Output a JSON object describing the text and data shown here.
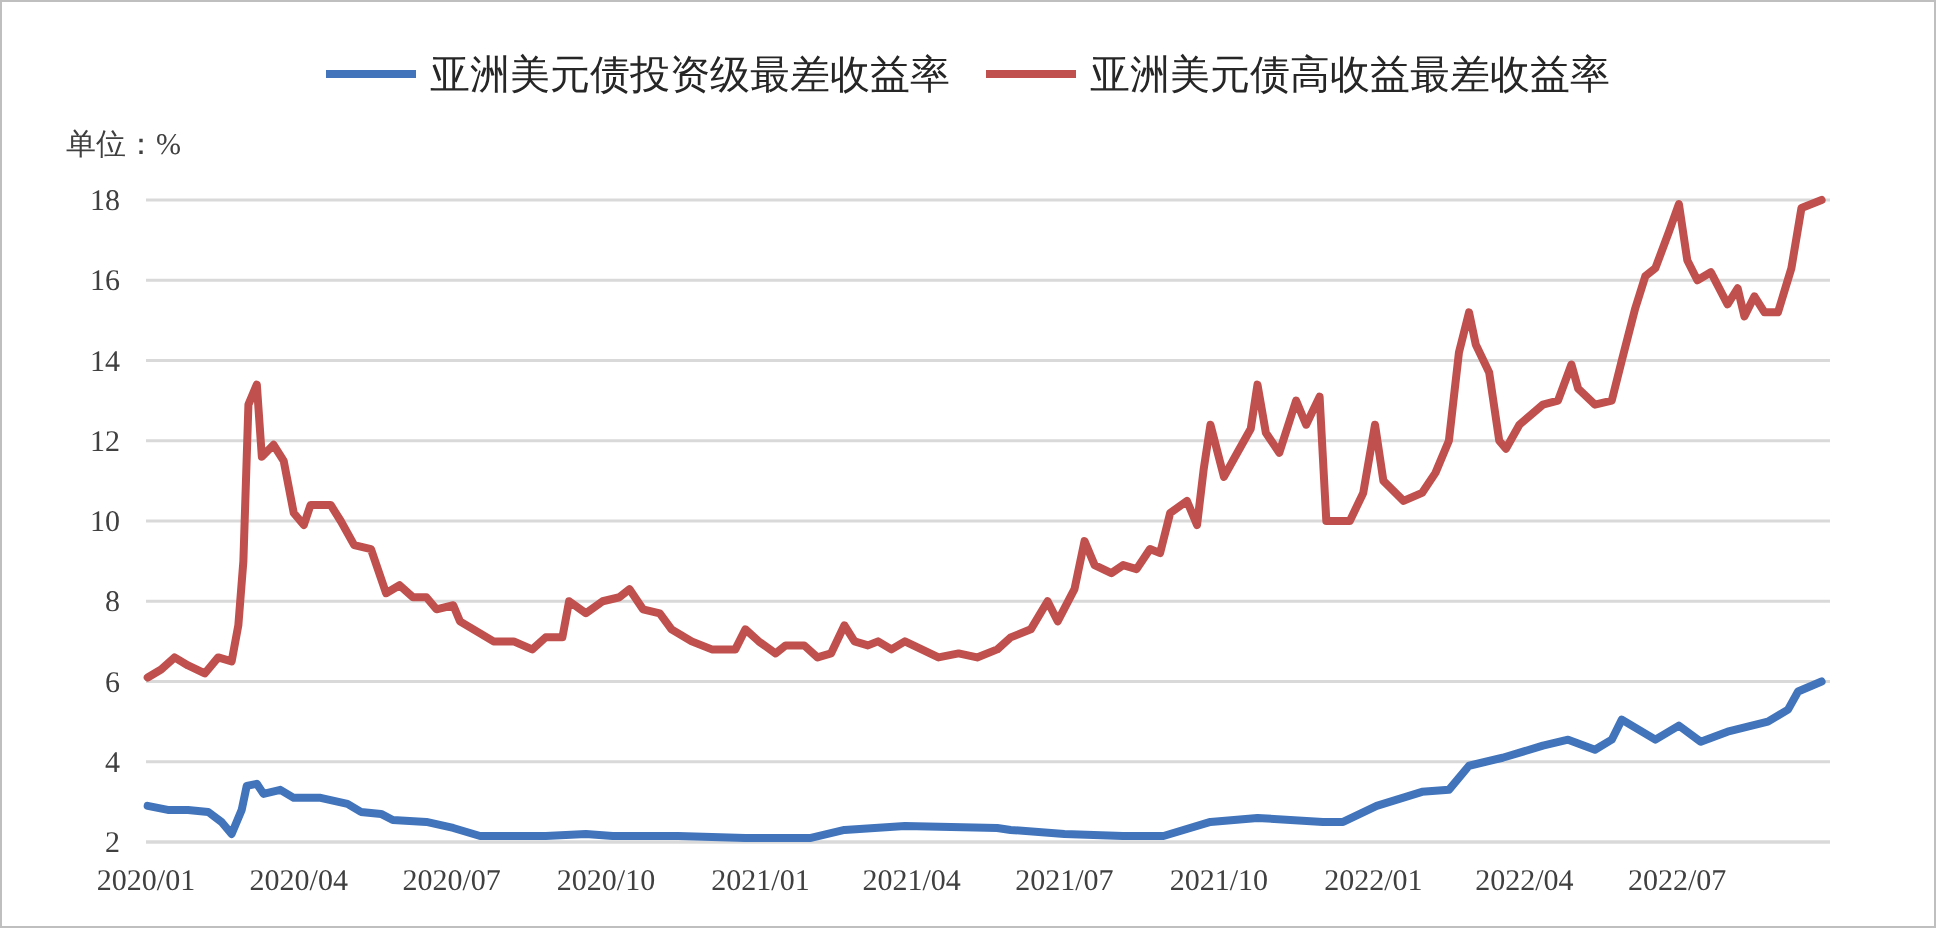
{
  "chart_data": {
    "type": "line",
    "annotations": [
      "单位：%"
    ],
    "xlim": [
      "2020-01-01",
      "2022-09-30"
    ],
    "xticks": [
      {
        "value": "2020-01-01",
        "label": "2020/01"
      },
      {
        "value": "2020-04-01",
        "label": "2020/04"
      },
      {
        "value": "2020-07-01",
        "label": "2020/07"
      },
      {
        "value": "2020-10-01",
        "label": "2020/10"
      },
      {
        "value": "2021-01-01",
        "label": "2021/01"
      },
      {
        "value": "2021-04-01",
        "label": "2021/04"
      },
      {
        "value": "2021-07-01",
        "label": "2021/07"
      },
      {
        "value": "2021-10-01",
        "label": "2021/10"
      },
      {
        "value": "2022-01-01",
        "label": "2022/01"
      },
      {
        "value": "2022-04-01",
        "label": "2022/04"
      },
      {
        "value": "2022-07-01",
        "label": "2022/07"
      }
    ],
    "ylim": [
      2,
      18
    ],
    "yticks": [
      2,
      4,
      6,
      8,
      10,
      12,
      14,
      16,
      18
    ],
    "grid": "y",
    "legend": "top",
    "series": [
      {
        "name": "亚洲美元债投资级最差收益率",
        "color": "#4174bb",
        "x": [
          "2020-01-02",
          "2020-01-14",
          "2020-01-26",
          "2020-02-07",
          "2020-02-15",
          "2020-02-21",
          "2020-02-27",
          "2020-03-01",
          "2020-03-07",
          "2020-03-11",
          "2020-03-21",
          "2020-03-29",
          "2020-04-14",
          "2020-04-30",
          "2020-05-08",
          "2020-05-20",
          "2020-05-27",
          "2020-06-16",
          "2020-07-02",
          "2020-07-18",
          "2020-08-26",
          "2020-09-19",
          "2020-10-05",
          "2020-11-13",
          "2020-12-23",
          "2021-01-31",
          "2021-02-20",
          "2021-03-28",
          "2021-05-22",
          "2021-05-30",
          "2021-07-01",
          "2021-08-05",
          "2021-08-29",
          "2021-09-26",
          "2021-10-24",
          "2021-12-02",
          "2021-12-14",
          "2022-01-03",
          "2022-01-30",
          "2022-02-15",
          "2022-02-27",
          "2022-03-19",
          "2022-04-12",
          "2022-04-27",
          "2022-05-13",
          "2022-05-23",
          "2022-05-29",
          "2022-06-18",
          "2022-07-02",
          "2022-07-15",
          "2022-07-31",
          "2022-08-24",
          "2022-09-05",
          "2022-09-11",
          "2022-09-25"
        ],
        "values": [
          2.9,
          2.8,
          2.8,
          2.75,
          2.5,
          2.2,
          2.8,
          3.4,
          3.45,
          3.2,
          3.3,
          3.1,
          3.1,
          2.95,
          2.75,
          2.7,
          2.55,
          2.5,
          2.35,
          2.15,
          2.15,
          2.2,
          2.15,
          2.15,
          2.1,
          2.1,
          2.3,
          2.4,
          2.35,
          2.3,
          2.2,
          2.15,
          2.15,
          2.5,
          2.6,
          2.5,
          2.5,
          2.9,
          3.25,
          3.3,
          3.9,
          4.1,
          4.4,
          4.55,
          4.3,
          4.55,
          5.05,
          4.55,
          4.9,
          4.5,
          4.75,
          5.0,
          5.3,
          5.75,
          6.0
        ]
      },
      {
        "name": "亚洲美元债高收益最差收益率",
        "color": "#c0504d",
        "x": [
          "2020-01-02",
          "2020-01-10",
          "2020-01-18",
          "2020-01-26",
          "2020-02-05",
          "2020-02-13",
          "2020-02-21",
          "2020-02-25",
          "2020-02-28",
          "2020-03-02",
          "2020-03-07",
          "2020-03-10",
          "2020-03-17",
          "2020-03-23",
          "2020-03-29",
          "2020-04-04",
          "2020-04-08",
          "2020-04-20",
          "2020-04-26",
          "2020-05-04",
          "2020-05-14",
          "2020-05-23",
          "2020-05-31",
          "2020-06-08",
          "2020-06-16",
          "2020-06-22",
          "2020-07-02",
          "2020-07-06",
          "2020-07-18",
          "2020-07-26",
          "2020-08-07",
          "2020-08-18",
          "2020-08-26",
          "2020-09-05",
          "2020-09-09",
          "2020-09-19",
          "2020-09-29",
          "2020-10-09",
          "2020-10-15",
          "2020-10-23",
          "2020-11-02",
          "2020-11-09",
          "2020-11-21",
          "2020-12-03",
          "2020-12-17",
          "2020-12-23",
          "2020-12-31",
          "2021-01-10",
          "2021-01-16",
          "2021-01-27",
          "2021-02-04",
          "2021-02-12",
          "2021-02-20",
          "2021-02-26",
          "2021-03-06",
          "2021-03-12",
          "2021-03-20",
          "2021-03-28",
          "2021-04-07",
          "2021-04-17",
          "2021-04-29",
          "2021-05-10",
          "2021-05-22",
          "2021-05-30",
          "2021-06-11",
          "2021-06-21",
          "2021-06-27",
          "2021-07-07",
          "2021-07-13",
          "2021-07-19",
          "2021-07-29",
          "2021-08-05",
          "2021-08-13",
          "2021-08-21",
          "2021-08-27",
          "2021-09-02",
          "2021-09-12",
          "2021-09-18",
          "2021-09-22",
          "2021-09-26",
          "2021-10-04",
          "2021-10-12",
          "2021-10-20",
          "2021-10-24",
          "2021-10-29",
          "2021-11-06",
          "2021-11-16",
          "2021-11-22",
          "2021-11-30",
          "2021-12-04",
          "2021-12-18",
          "2021-12-26",
          "2022-01-02",
          "2022-01-07",
          "2022-01-19",
          "2022-01-30",
          "2022-02-07",
          "2022-02-15",
          "2022-02-21",
          "2022-02-27",
          "2022-03-03",
          "2022-03-11",
          "2022-03-17",
          "2022-03-21",
          "2022-03-29",
          "2022-04-12",
          "2022-04-21",
          "2022-04-29",
          "2022-05-03",
          "2022-05-13",
          "2022-05-23",
          "2022-05-29",
          "2022-06-06",
          "2022-06-12",
          "2022-06-18",
          "2022-06-26",
          "2022-07-02",
          "2022-07-07",
          "2022-07-13",
          "2022-07-21",
          "2022-07-31",
          "2022-08-06",
          "2022-08-10",
          "2022-08-16",
          "2022-08-22",
          "2022-08-30",
          "2022-09-07",
          "2022-09-13",
          "2022-09-25"
        ],
        "values": [
          6.1,
          6.3,
          6.6,
          6.4,
          6.2,
          6.6,
          6.5,
          7.4,
          9.0,
          12.9,
          13.4,
          11.6,
          11.9,
          11.5,
          10.2,
          9.9,
          10.4,
          10.4,
          10.0,
          9.4,
          9.3,
          8.2,
          8.4,
          8.1,
          8.1,
          7.8,
          7.9,
          7.5,
          7.2,
          7.0,
          7.0,
          6.8,
          7.1,
          7.1,
          8.0,
          7.7,
          8.0,
          8.1,
          8.3,
          7.8,
          7.7,
          7.3,
          7.0,
          6.8,
          6.8,
          7.3,
          7.0,
          6.7,
          6.9,
          6.9,
          6.6,
          6.7,
          7.4,
          7.0,
          6.9,
          7.0,
          6.8,
          7.0,
          6.8,
          6.6,
          6.7,
          6.6,
          6.8,
          7.1,
          7.3,
          8.0,
          7.5,
          8.3,
          9.5,
          8.9,
          8.7,
          8.9,
          8.8,
          9.3,
          9.2,
          10.2,
          10.5,
          9.9,
          11.3,
          12.4,
          11.1,
          11.7,
          12.3,
          13.4,
          12.2,
          11.7,
          13.0,
          12.4,
          13.1,
          10.0,
          10.0,
          10.7,
          12.4,
          11.0,
          10.5,
          10.7,
          11.2,
          12.0,
          14.2,
          15.2,
          14.4,
          13.7,
          12.0,
          11.8,
          12.4,
          12.9,
          13.0,
          13.9,
          13.3,
          12.9,
          13.0,
          14.0,
          15.3,
          16.1,
          16.3,
          17.2,
          17.9,
          16.5,
          16.0,
          16.2,
          15.4,
          15.8,
          15.1,
          15.6,
          15.2,
          15.2,
          16.3,
          17.8,
          18.0
        ]
      }
    ]
  }
}
